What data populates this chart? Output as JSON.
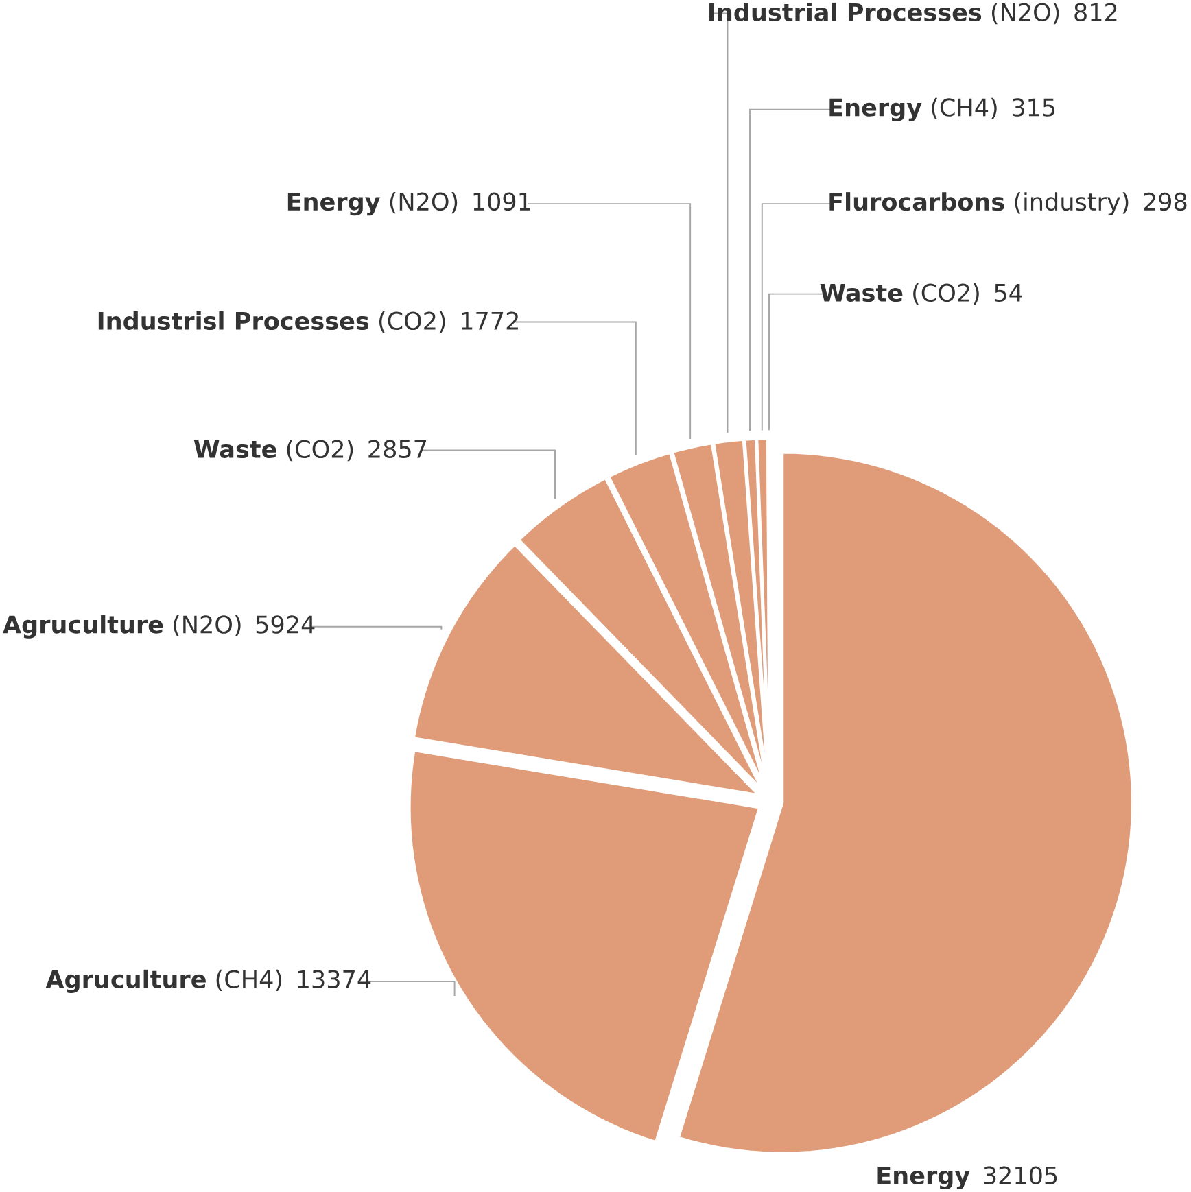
{
  "chart_data": {
    "type": "pie",
    "categories": [
      "**Energy**",
      "**Agruculture** (CH4)",
      "**Agruculture** (N2O)",
      "**Waste** (CO2)",
      "**Industrisl Processes** (CO2)",
      "**Energy** (N2O)",
      "**Industrial Processes** (N2O)",
      "**Energy** (CH4)",
      "**Flurocarbons** (industry)",
      "**Waste** (CO2)"
    ],
    "values": [
      32105,
      13374,
      5924,
      2857,
      1772,
      1091,
      812,
      315,
      298,
      54
    ],
    "color": "#e09c78",
    "data_labels": true
  }
}
